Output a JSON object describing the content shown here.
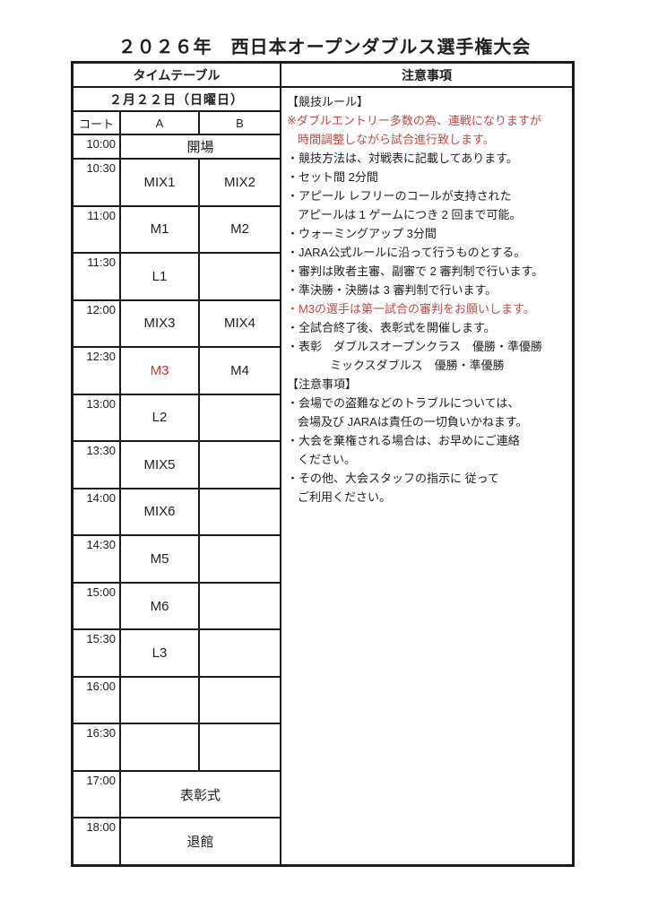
{
  "title": "２０２６年　西日本オープンダブルス選手権大会",
  "colors": {
    "red_note": "#bf4a45",
    "red_match": "#c3362b",
    "border": "#1b1b1b",
    "text": "#1f1f1f"
  },
  "timetable": {
    "header": "タイムテーブル",
    "date": "２月２２日（日曜日）",
    "court_label": "コート",
    "court_a": "A",
    "court_b": "B",
    "rows": [
      {
        "time": "10:00",
        "a": "開場",
        "b": "",
        "merged": true,
        "small": true
      },
      {
        "time": "10:30",
        "a": "MIX1",
        "b": "MIX2"
      },
      {
        "time": "11:00",
        "a": "M1",
        "b": "M2"
      },
      {
        "time": "11:30",
        "a": "L1",
        "b": ""
      },
      {
        "time": "12:00",
        "a": "MIX3",
        "b": "MIX4"
      },
      {
        "time": "12:30",
        "a": "M3",
        "b": "M4",
        "a_red": true
      },
      {
        "time": "13:00",
        "a": "L2",
        "b": ""
      },
      {
        "time": "13:30",
        "a": "MIX5",
        "b": ""
      },
      {
        "time": "14:00",
        "a": "MIX6",
        "b": ""
      },
      {
        "time": "14:30",
        "a": "M5",
        "b": ""
      },
      {
        "time": "15:00",
        "a": "M6",
        "b": ""
      },
      {
        "time": "15:30",
        "a": "L3",
        "b": ""
      },
      {
        "time": "16:00",
        "a": "",
        "b": ""
      },
      {
        "time": "16:30",
        "a": "",
        "b": ""
      },
      {
        "time": "17:00",
        "a": "表彰式",
        "b": "",
        "merged": true
      },
      {
        "time": "18:00",
        "a": "退館",
        "b": "",
        "merged": true
      }
    ]
  },
  "notes": {
    "header": "注意事項",
    "lines": [
      {
        "text": "【競技ルール】",
        "red": false,
        "indent": 0
      },
      {
        "text": "※ダブルエントリー多数の為、連戦になりますが",
        "red": true,
        "indent": 0
      },
      {
        "text": "時間調整しながら試合進行致します。",
        "red": true,
        "indent": 1
      },
      {
        "text": "・競技方法は、対戦表に記載してあります。",
        "red": false,
        "indent": 0
      },
      {
        "text": "・セット間 2分間",
        "red": false,
        "indent": 0
      },
      {
        "text": "・アピール レフリーのコールが支持された",
        "red": false,
        "indent": 0
      },
      {
        "text": "アピールは 1 ゲームにつき 2 回まで可能。",
        "red": false,
        "indent": 1
      },
      {
        "text": "・ウォーミングアップ 3分間",
        "red": false,
        "indent": 0
      },
      {
        "text": "・JARA公式ルールに沿って行うものとする。",
        "red": false,
        "indent": 0
      },
      {
        "text": "・審判は敗者主審、副審で 2 審判制で行います。",
        "red": false,
        "indent": 0
      },
      {
        "text": "・準決勝・決勝は 3 審判制で行います。",
        "red": false,
        "indent": 0
      },
      {
        "text": "・M3の選手は第一試合の審判をお願いします。",
        "red": true,
        "indent": 0
      },
      {
        "text": "・全試合終了後、表彰式を開催します。",
        "red": false,
        "indent": 0
      },
      {
        "text": "・表彰　ダブルスオープンクラス　優勝・準優勝",
        "red": false,
        "indent": 0
      },
      {
        "text": "ミックスダブルス　優勝・準優勝",
        "red": false,
        "indent": 4
      },
      {
        "text": "【注意事項】",
        "red": false,
        "indent": 0
      },
      {
        "text": "・会場での盗難などのトラブルについては、",
        "red": false,
        "indent": 0
      },
      {
        "text": "会場及び JARAは責任の一切負いかねます。",
        "red": false,
        "indent": 1
      },
      {
        "text": "・大会を棄権される場合は、お早めにご連絡",
        "red": false,
        "indent": 0
      },
      {
        "text": "ください。",
        "red": false,
        "indent": 1
      },
      {
        "text": "・その他、大会スタッフの指示に 従って",
        "red": false,
        "indent": 0
      },
      {
        "text": "ご利用ください。",
        "red": false,
        "indent": 1
      }
    ]
  }
}
